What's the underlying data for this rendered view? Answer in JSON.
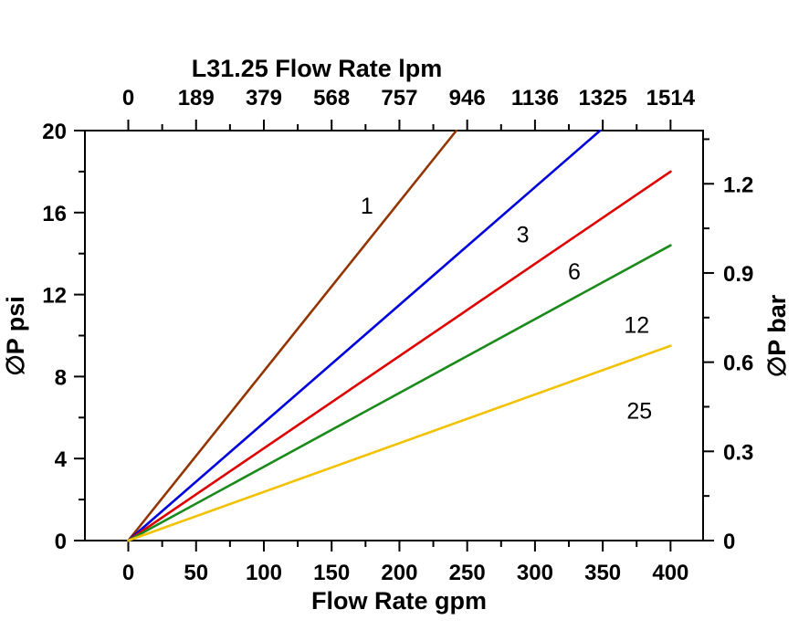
{
  "chart_data": {
    "type": "line",
    "title": "L31.25 Flow Rate lpm",
    "xlabel_bottom": "Flow Rate gpm",
    "ylabel_left": "∅P psi",
    "ylabel_right": "∅P bar",
    "xlim": [
      -32,
      424
    ],
    "ylim": [
      0,
      20
    ],
    "grid": false,
    "legend": "inline-labels-on-lines",
    "x_bottom_ticks": [
      0,
      50,
      100,
      150,
      200,
      250,
      300,
      350,
      400
    ],
    "x_top_ticks": [
      "0",
      "189",
      "379",
      "568",
      "757",
      "946",
      "1136",
      "1325",
      "1514"
    ],
    "x_minor_ticks": [
      25,
      75,
      125,
      175,
      225,
      275,
      325,
      375
    ],
    "y_left_ticks": [
      0,
      4,
      8,
      12,
      16,
      20
    ],
    "y_left_minor_ticks": [
      2,
      6,
      10,
      14,
      18
    ],
    "y_right_ticks": [
      0,
      0.3,
      0.6,
      0.9,
      1.2
    ],
    "y_right_minor_ticks": [
      0.15,
      0.45,
      0.75,
      1.05,
      1.35
    ],
    "psi_per_bar": 14.5038,
    "axis_color": "#000000",
    "series": [
      {
        "name": "1",
        "color": "#943400",
        "points": [
          [
            0,
            0
          ],
          [
            242,
            20
          ]
        ],
        "label_at": [
          176,
          16.3
        ]
      },
      {
        "name": "3",
        "color": "#0000DC",
        "points": [
          [
            0,
            0
          ],
          [
            348,
            20
          ]
        ],
        "label_at": [
          291,
          14.9
        ]
      },
      {
        "name": "6",
        "color": "#DF0000",
        "points": [
          [
            0,
            0
          ],
          [
            400,
            18.0
          ]
        ],
        "label_at": [
          329,
          13.1
        ]
      },
      {
        "name": "12",
        "color": "#1A8A1A",
        "points": [
          [
            0,
            0
          ],
          [
            400,
            14.4
          ]
        ],
        "label_at": [
          375,
          10.5
        ]
      },
      {
        "name": "25",
        "color": "#F2C100",
        "points": [
          [
            0,
            0
          ],
          [
            400,
            9.5
          ]
        ],
        "label_at": [
          377,
          6.3
        ]
      }
    ]
  }
}
